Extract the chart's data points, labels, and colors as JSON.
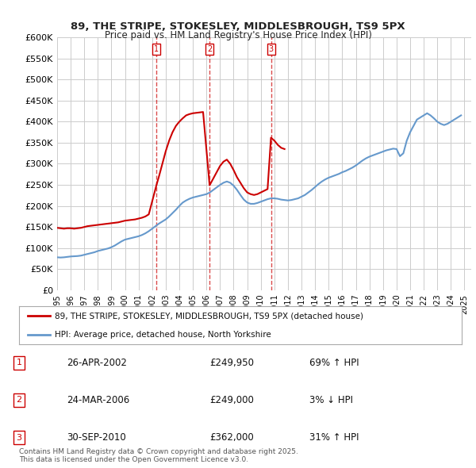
{
  "title": "89, THE STRIPE, STOKESLEY, MIDDLESBROUGH, TS9 5PX",
  "subtitle": "Price paid vs. HM Land Registry's House Price Index (HPI)",
  "ylabel_ticks": [
    "£0",
    "£50K",
    "£100K",
    "£150K",
    "£200K",
    "£250K",
    "£300K",
    "£350K",
    "£400K",
    "£450K",
    "£500K",
    "£550K",
    "£600K"
  ],
  "ylim": [
    0,
    600000
  ],
  "xlim_start": 1995.0,
  "xlim_end": 2025.5,
  "background_color": "#ffffff",
  "grid_color": "#cccccc",
  "sale_dates": [
    2002.32,
    2006.23,
    2010.75
  ],
  "sale_prices": [
    249950,
    249000,
    362000
  ],
  "sale_labels": [
    "1",
    "2",
    "3"
  ],
  "legend_red": "89, THE STRIPE, STOKESLEY, MIDDLESBROUGH, TS9 5PX (detached house)",
  "legend_blue": "HPI: Average price, detached house, North Yorkshire",
  "table_rows": [
    [
      "1",
      "26-APR-2002",
      "£249,950",
      "69% ↑ HPI"
    ],
    [
      "2",
      "24-MAR-2006",
      "£249,000",
      "3% ↓ HPI"
    ],
    [
      "3",
      "30-SEP-2010",
      "£362,000",
      "31% ↑ HPI"
    ]
  ],
  "footnote": "Contains HM Land Registry data © Crown copyright and database right 2025.\nThis data is licensed under the Open Government Licence v3.0.",
  "red_color": "#cc0000",
  "blue_color": "#6699cc",
  "hpi_x": [
    1995.0,
    1995.25,
    1995.5,
    1995.75,
    1996.0,
    1996.25,
    1996.5,
    1996.75,
    1997.0,
    1997.25,
    1997.5,
    1997.75,
    1998.0,
    1998.25,
    1998.5,
    1998.75,
    1999.0,
    1999.25,
    1999.5,
    1999.75,
    2000.0,
    2000.25,
    2000.5,
    2000.75,
    2001.0,
    2001.25,
    2001.5,
    2001.75,
    2002.0,
    2002.25,
    2002.5,
    2002.75,
    2003.0,
    2003.25,
    2003.5,
    2003.75,
    2004.0,
    2004.25,
    2004.5,
    2004.75,
    2005.0,
    2005.25,
    2005.5,
    2005.75,
    2006.0,
    2006.25,
    2006.5,
    2006.75,
    2007.0,
    2007.25,
    2007.5,
    2007.75,
    2008.0,
    2008.25,
    2008.5,
    2008.75,
    2009.0,
    2009.25,
    2009.5,
    2009.75,
    2010.0,
    2010.25,
    2010.5,
    2010.75,
    2011.0,
    2011.25,
    2011.5,
    2011.75,
    2012.0,
    2012.25,
    2012.5,
    2012.75,
    2013.0,
    2013.25,
    2013.5,
    2013.75,
    2014.0,
    2014.25,
    2014.5,
    2014.75,
    2015.0,
    2015.25,
    2015.5,
    2015.75,
    2016.0,
    2016.25,
    2016.5,
    2016.75,
    2017.0,
    2017.25,
    2017.5,
    2017.75,
    2018.0,
    2018.25,
    2018.5,
    2018.75,
    2019.0,
    2019.25,
    2019.5,
    2019.75,
    2020.0,
    2020.25,
    2020.5,
    2020.75,
    2021.0,
    2021.25,
    2021.5,
    2021.75,
    2022.0,
    2022.25,
    2022.5,
    2022.75,
    2023.0,
    2023.25,
    2023.5,
    2023.75,
    2024.0,
    2024.25,
    2024.5,
    2024.75
  ],
  "hpi_y": [
    78000,
    77500,
    78000,
    79000,
    80000,
    80500,
    81000,
    82000,
    84000,
    86000,
    88000,
    90000,
    93000,
    95000,
    97000,
    99000,
    102000,
    106000,
    111000,
    116000,
    120000,
    122000,
    124000,
    126000,
    128000,
    131000,
    135000,
    140000,
    146000,
    152000,
    158000,
    163000,
    168000,
    175000,
    183000,
    191000,
    200000,
    208000,
    213000,
    217000,
    220000,
    222000,
    224000,
    226000,
    228000,
    232000,
    238000,
    244000,
    250000,
    255000,
    258000,
    255000,
    248000,
    238000,
    226000,
    215000,
    208000,
    205000,
    205000,
    207000,
    210000,
    213000,
    216000,
    218000,
    218000,
    217000,
    215000,
    214000,
    213000,
    214000,
    216000,
    218000,
    222000,
    226000,
    232000,
    238000,
    245000,
    252000,
    258000,
    263000,
    267000,
    270000,
    273000,
    276000,
    280000,
    283000,
    287000,
    291000,
    296000,
    302000,
    308000,
    313000,
    317000,
    320000,
    323000,
    326000,
    329000,
    332000,
    334000,
    336000,
    335000,
    318000,
    325000,
    355000,
    375000,
    390000,
    405000,
    410000,
    415000,
    420000,
    415000,
    408000,
    400000,
    395000,
    392000,
    395000,
    400000,
    405000,
    410000,
    415000
  ],
  "red_x": [
    1995.0,
    1995.25,
    1995.5,
    1995.75,
    1996.0,
    1996.25,
    1996.5,
    1996.75,
    1997.0,
    1997.25,
    1997.5,
    1997.75,
    1998.0,
    1998.25,
    1998.5,
    1998.75,
    1999.0,
    1999.25,
    1999.5,
    1999.75,
    2000.0,
    2000.25,
    2000.5,
    2000.75,
    2001.0,
    2001.25,
    2001.5,
    2001.75,
    2002.32,
    2002.32,
    2002.5,
    2002.75,
    2003.0,
    2003.25,
    2003.5,
    2003.75,
    2004.0,
    2004.25,
    2004.5,
    2004.75,
    2005.0,
    2005.25,
    2005.5,
    2005.75,
    2006.23,
    2006.23,
    2006.5,
    2006.75,
    2007.0,
    2007.25,
    2007.5,
    2007.75,
    2008.0,
    2008.25,
    2008.5,
    2008.75,
    2009.0,
    2009.25,
    2009.5,
    2009.75,
    2010.0,
    2010.25,
    2010.5,
    2010.75,
    2010.75,
    2011.0,
    2011.25,
    2011.5,
    2011.75
  ],
  "red_y": [
    148000,
    147000,
    146000,
    147000,
    147000,
    146000,
    147000,
    148000,
    150000,
    152000,
    153000,
    154000,
    155000,
    156000,
    157000,
    158000,
    159000,
    160000,
    161000,
    163000,
    165000,
    166000,
    167000,
    168000,
    170000,
    172000,
    175000,
    180000,
    249950,
    249950,
    270000,
    300000,
    330000,
    355000,
    375000,
    390000,
    400000,
    408000,
    415000,
    418000,
    420000,
    421000,
    422000,
    423000,
    249000,
    249000,
    265000,
    280000,
    295000,
    305000,
    310000,
    300000,
    285000,
    268000,
    255000,
    242000,
    232000,
    228000,
    226000,
    228000,
    232000,
    236000,
    240000,
    362000,
    362000,
    355000,
    345000,
    338000,
    335000
  ]
}
